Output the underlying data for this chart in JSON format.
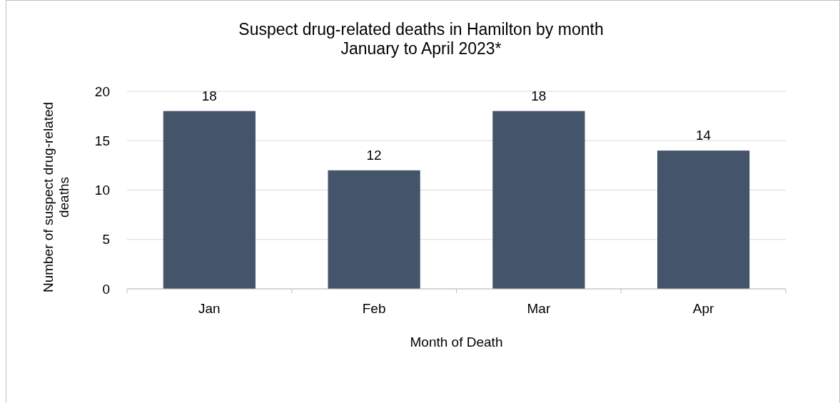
{
  "chart_data": {
    "type": "bar",
    "title": "Suspect drug-related deaths in Hamilton by month",
    "subtitle": "January to April 2023*",
    "xlabel": "Month of Death",
    "ylabel": "Number of suspect drug-related deaths",
    "categories": [
      "Jan",
      "Feb",
      "Mar",
      "Apr"
    ],
    "values": [
      18,
      12,
      18,
      14
    ],
    "color": "#44546a",
    "ylim": [
      0,
      20
    ],
    "yticks": [
      0,
      5,
      10,
      15,
      20
    ],
    "grid": "y",
    "data_labels": true
  }
}
